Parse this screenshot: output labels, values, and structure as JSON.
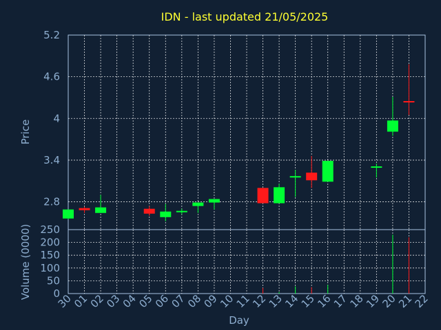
{
  "chart_data": {
    "type": "candlestick",
    "title": "IDN - last updated 21/05/2025",
    "xlabel": "Day",
    "price_panel": {
      "ylabel": "Price",
      "ylim": [
        2.4,
        5.2
      ],
      "yticks": [
        "2.8",
        "3.4",
        "4",
        "4.6",
        "5.2"
      ],
      "grid": true
    },
    "volume_panel": {
      "ylabel": "Volume (0000)",
      "ylim": [
        0,
        250
      ],
      "yticks": [
        "0",
        "50",
        "100",
        "150",
        "200",
        "250"
      ],
      "grid": true
    },
    "x_ticks": [
      "30",
      "01",
      "02",
      "03",
      "04",
      "05",
      "06",
      "07",
      "08",
      "09",
      "10",
      "11",
      "12",
      "13",
      "14",
      "15",
      "16",
      "17",
      "18",
      "19",
      "20",
      "21",
      "22"
    ],
    "up_color": "#00ff33",
    "down_color": "#ff1a1a",
    "candles": [
      {
        "day": "30",
        "open": 2.56,
        "high": 2.69,
        "low": 2.55,
        "close": 2.69
      },
      {
        "day": "01",
        "open": 2.71,
        "high": 2.73,
        "low": 2.64,
        "close": 2.68
      },
      {
        "day": "02",
        "open": 2.64,
        "high": 2.9,
        "low": 2.64,
        "close": 2.72
      },
      {
        "day": "05",
        "open": 2.7,
        "high": 2.74,
        "low": 2.6,
        "close": 2.63
      },
      {
        "day": "06",
        "open": 2.58,
        "high": 2.77,
        "low": 2.52,
        "close": 2.66
      },
      {
        "day": "07",
        "open": 2.65,
        "high": 2.7,
        "low": 2.62,
        "close": 2.67
      },
      {
        "day": "08",
        "open": 2.74,
        "high": 2.79,
        "low": 2.64,
        "close": 2.79
      },
      {
        "day": "09",
        "open": 2.79,
        "high": 2.84,
        "low": 2.69,
        "close": 2.84
      },
      {
        "day": "12",
        "open": 3.0,
        "high": 3.0,
        "low": 2.78,
        "close": 2.78
      },
      {
        "day": "13",
        "open": 2.78,
        "high": 3.06,
        "low": 2.78,
        "close": 3.01
      },
      {
        "day": "14",
        "open": 3.15,
        "high": 3.26,
        "low": 2.87,
        "close": 3.17
      },
      {
        "day": "15",
        "open": 3.22,
        "high": 3.46,
        "low": 3.0,
        "close": 3.11
      },
      {
        "day": "16",
        "open": 3.09,
        "high": 3.39,
        "low": 3.09,
        "close": 3.39
      },
      {
        "day": "19",
        "open": 3.3,
        "high": 3.35,
        "low": 3.15,
        "close": 3.31
      },
      {
        "day": "20",
        "open": 3.81,
        "high": 4.31,
        "low": 3.75,
        "close": 3.97
      },
      {
        "day": "21",
        "open": 4.25,
        "high": 4.78,
        "low": 4.05,
        "close": 4.24
      }
    ],
    "volume": [
      {
        "day": "30",
        "value": 0
      },
      {
        "day": "01",
        "value": 0
      },
      {
        "day": "02",
        "value": 0
      },
      {
        "day": "05",
        "value": 0
      },
      {
        "day": "06",
        "value": 0
      },
      {
        "day": "07",
        "value": 0
      },
      {
        "day": "08",
        "value": 0
      },
      {
        "day": "09",
        "value": 0
      },
      {
        "day": "12",
        "value": 22
      },
      {
        "day": "13",
        "value": 6
      },
      {
        "day": "14",
        "value": 28
      },
      {
        "day": "15",
        "value": 25
      },
      {
        "day": "16",
        "value": 34
      },
      {
        "day": "19",
        "value": 0
      },
      {
        "day": "20",
        "value": 230
      },
      {
        "day": "21",
        "value": 220
      }
    ]
  }
}
